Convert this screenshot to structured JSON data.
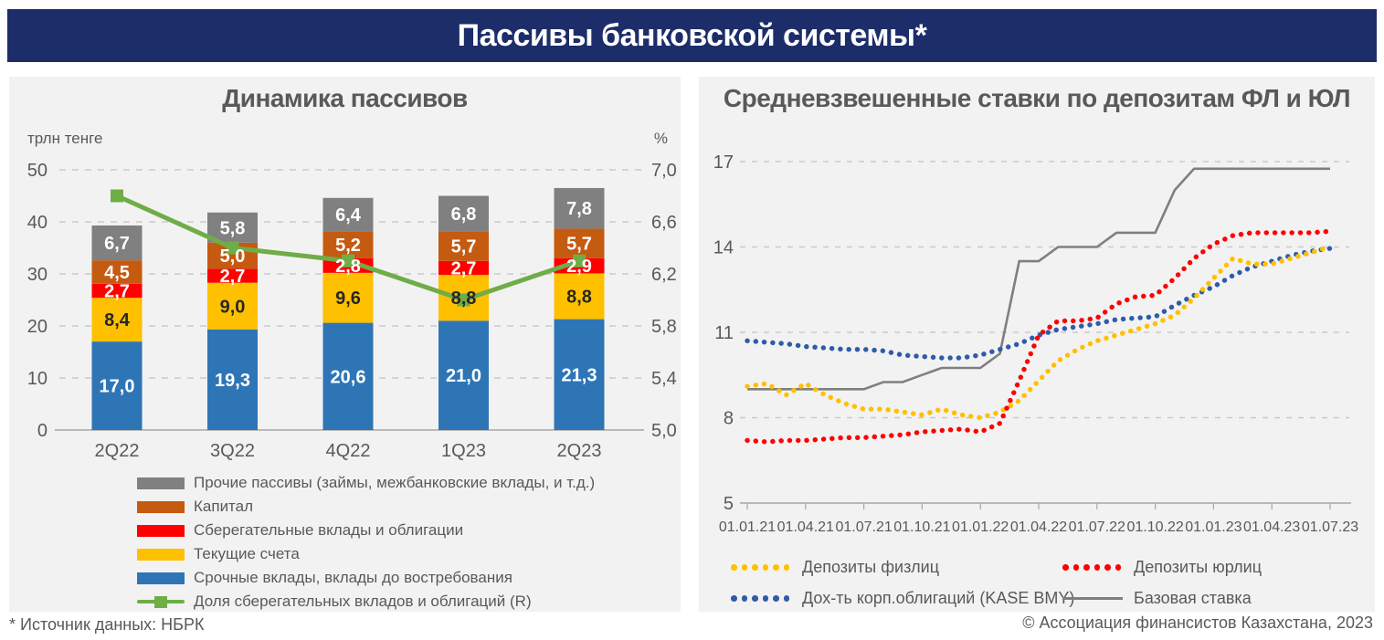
{
  "header": {
    "title": "Пассивы банковской системы*"
  },
  "footer": {
    "source_note": "* Источник данных: НБРК",
    "copyright": "© Ассоциация финансистов Казахстана, 2023"
  },
  "colors": {
    "header_bg": "#1c2d69",
    "panel_bg": "#f2f2f2",
    "text_gray": "#595959",
    "grid": "#c9c9c9",
    "axis": "#a6a6a6"
  },
  "chart_data": [
    {
      "id": "liabilities-dynamics",
      "type": "bar",
      "title": "Динамика пассивов",
      "left_axis_label": "трлн тенге",
      "right_axis_label": "%",
      "categories": [
        "2Q22",
        "3Q22",
        "4Q22",
        "1Q23",
        "2Q23"
      ],
      "left_axis_ticks": [
        0,
        10,
        20,
        30,
        40,
        50
      ],
      "right_axis_ticks": [
        5.0,
        5.4,
        5.8,
        6.2,
        6.6,
        7.0
      ],
      "left_ylim": [
        0,
        50
      ],
      "right_ylim": [
        5.0,
        7.0
      ],
      "grid": "dashed",
      "legend_position": "bottom",
      "series": [
        {
          "name": "Срочные вклады, вклады до востребования",
          "color": "#2e75b6",
          "label_color": "#ffffff",
          "values": [
            17.0,
            19.3,
            20.6,
            21.0,
            21.3
          ]
        },
        {
          "name": "Текущие счета",
          "color": "#ffc000",
          "label_color": "#262626",
          "values": [
            8.4,
            9.0,
            9.6,
            8.8,
            8.8
          ]
        },
        {
          "name": "Сберегательные вклады и облигации",
          "color": "#ff0000",
          "label_color": "#ffffff",
          "values": [
            2.7,
            2.7,
            2.8,
            2.7,
            2.9
          ]
        },
        {
          "name": "Капитал",
          "color": "#c55a11",
          "label_color": "#ffffff",
          "values": [
            4.5,
            5.0,
            5.2,
            5.7,
            5.7
          ]
        },
        {
          "name": "Прочие пассивы (займы, межбанковские вклады, и т.д.)",
          "color": "#808080",
          "label_color": "#ffffff",
          "values": [
            6.7,
            5.8,
            6.4,
            6.8,
            7.8
          ]
        }
      ],
      "line_series": {
        "name": "Доля сберегательных вкладов и облигаций (R)",
        "color": "#6fad47",
        "axis": "right",
        "marker": "square",
        "values": [
          6.8,
          6.4,
          6.3,
          6.0,
          6.3
        ]
      }
    },
    {
      "id": "deposit-rates",
      "type": "line",
      "title": "Средневзвешенные ставки по депозитам ФЛ и ЮЛ",
      "x_labels": [
        "01.01.21",
        "01.04.21",
        "01.07.21",
        "01.10.21",
        "01.01.22",
        "01.04.22",
        "01.07.22",
        "01.10.22",
        "01.01.23",
        "01.04.23",
        "01.07.23"
      ],
      "points": "monthly",
      "y_ticks": [
        5,
        8,
        11,
        14,
        17
      ],
      "ylim": [
        5,
        17
      ],
      "grid": "dashed",
      "legend_position": "bottom",
      "series": [
        {
          "name": "Депозиты физлиц",
          "color": "#ffc000",
          "style": "dotted",
          "values": [
            9.1,
            9.2,
            8.8,
            9.2,
            8.8,
            8.5,
            8.3,
            8.3,
            8.2,
            8.1,
            8.3,
            8.1,
            8.0,
            8.2,
            8.6,
            9.3,
            10.0,
            10.4,
            10.7,
            10.9,
            11.1,
            11.3,
            11.6,
            12.2,
            12.9,
            13.6,
            13.4,
            13.4,
            13.6,
            13.8,
            14.0
          ]
        },
        {
          "name": "Депозиты юрлиц",
          "color": "#ff0000",
          "style": "dotted",
          "values": [
            7.2,
            7.15,
            7.2,
            7.2,
            7.25,
            7.3,
            7.3,
            7.35,
            7.4,
            7.5,
            7.55,
            7.6,
            7.5,
            7.8,
            9.3,
            10.9,
            11.4,
            11.4,
            11.5,
            12.0,
            12.25,
            12.3,
            12.9,
            13.6,
            14.1,
            14.4,
            14.5,
            14.5,
            14.5,
            14.5,
            14.55
          ]
        },
        {
          "name": "Дох-ть корп.облигаций (KASE BMY)",
          "color": "#2f5ca8",
          "style": "dotted",
          "values": [
            10.7,
            10.65,
            10.6,
            10.5,
            10.45,
            10.4,
            10.4,
            10.35,
            10.2,
            10.15,
            10.1,
            10.1,
            10.2,
            10.4,
            10.6,
            10.9,
            11.1,
            11.2,
            11.3,
            11.45,
            11.5,
            11.55,
            11.95,
            12.3,
            12.6,
            13.0,
            13.3,
            13.5,
            13.7,
            13.85,
            13.95
          ]
        },
        {
          "name": "Базовая ставка",
          "color": "#7f7f7f",
          "style": "solid",
          "values": [
            9.0,
            9.0,
            9.0,
            9.0,
            9.0,
            9.0,
            9.0,
            9.25,
            9.25,
            9.5,
            9.75,
            9.75,
            9.75,
            10.25,
            13.5,
            13.5,
            14.0,
            14.0,
            14.0,
            14.5,
            14.5,
            14.5,
            16.0,
            16.75,
            16.75,
            16.75,
            16.75,
            16.75,
            16.75,
            16.75,
            16.75
          ]
        }
      ]
    }
  ]
}
